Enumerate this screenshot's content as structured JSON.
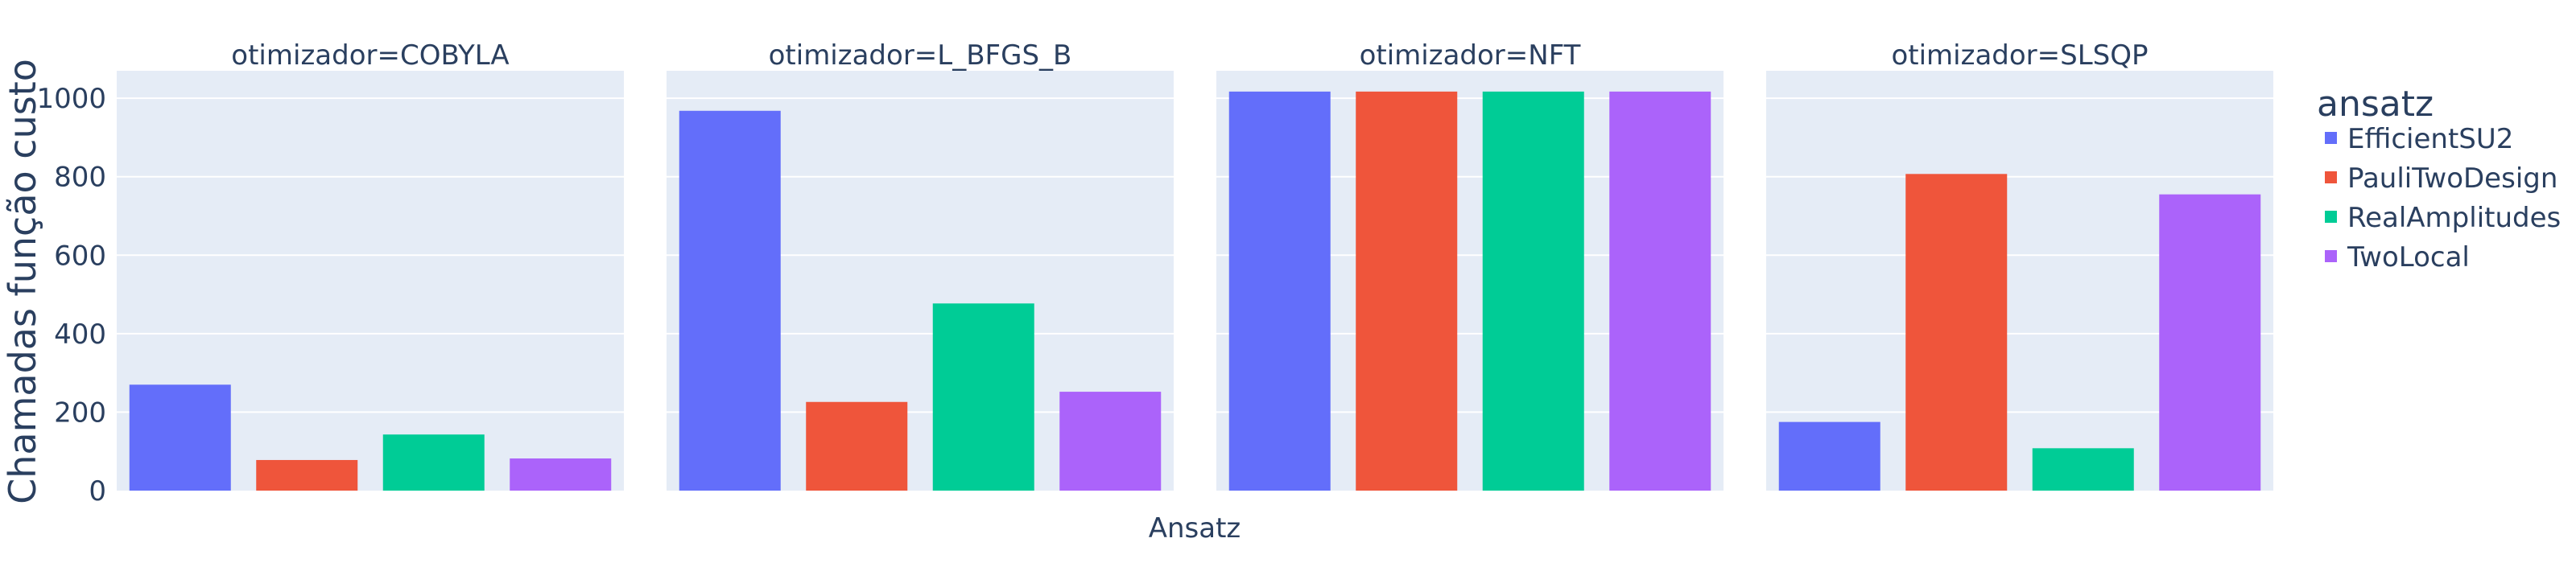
{
  "chart_data": {
    "type": "bar",
    "facet_prefix": "otimizador=",
    "facets": [
      "COBYLA",
      "L_BFGS_B",
      "NFT",
      "SLSQP"
    ],
    "categories": [
      "EfficientSU2",
      "PauliTwoDesign",
      "RealAmplitudes",
      "TwoLocal"
    ],
    "series": [
      {
        "name": "EfficientSU2",
        "color": "#636efa",
        "values": [
          270,
          968,
          1017,
          175
        ]
      },
      {
        "name": "PauliTwoDesign",
        "color": "#ef553b",
        "values": [
          78,
          226,
          1017,
          807
        ]
      },
      {
        "name": "RealAmplitudes",
        "color": "#00cc96",
        "values": [
          143,
          477,
          1017,
          108
        ]
      },
      {
        "name": "TwoLocal",
        "color": "#ab63fa",
        "values": [
          82,
          252,
          1017,
          755
        ]
      }
    ],
    "xlabel": "Ansatz",
    "ylabel": "Chamadas função custo",
    "ylim": [
      0,
      1070
    ],
    "yticks": [
      0,
      200,
      400,
      600,
      800,
      1000
    ],
    "legend_title": "ansatz",
    "legend_position": "right",
    "grid": true,
    "plot_bgcolor": "#e5ecf6",
    "gridcolor": "#ffffff"
  },
  "facet_titles": [
    "otimizador=COBYLA",
    "otimizador=L_BFGS_B",
    "otimizador=NFT",
    "otimizador=SLSQP"
  ],
  "ytick_labels": [
    "0",
    "200",
    "400",
    "600",
    "800",
    "1000"
  ]
}
